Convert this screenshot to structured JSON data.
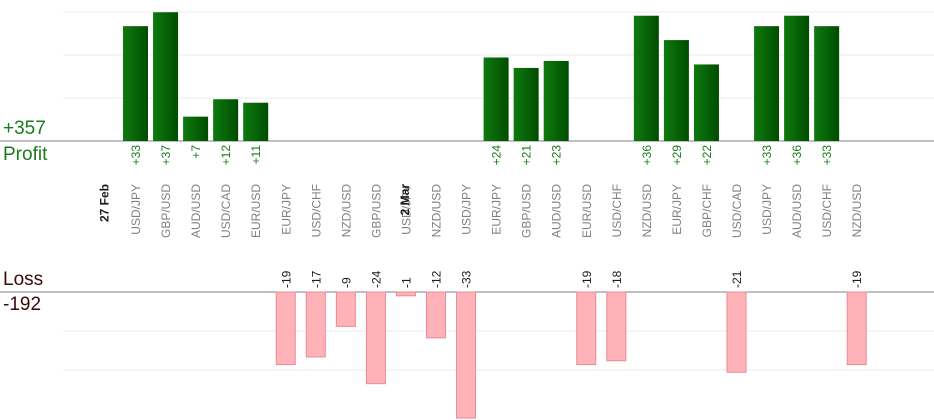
{
  "summary": {
    "profit_total": "+357",
    "profit_label": "Profit",
    "loss_label": "Loss",
    "loss_total": "-192"
  },
  "colors": {
    "profit_top": "#0e7a0e",
    "profit_bottom": "#004d00",
    "loss_fill": "#ffb3b8",
    "loss_stroke": "#e98a93",
    "profit_text": "#1b7a1b",
    "loss_text": "#3a0a0a",
    "pair_text": "#808080",
    "grid": "#ebebeb"
  },
  "chart_data": {
    "type": "bar",
    "date_markers": [
      {
        "label": "27 Feb",
        "before_index": 0
      },
      {
        "label": "2 Mar",
        "before_index": 10
      }
    ],
    "categories": [
      "USD/JPY",
      "GBP/USD",
      "AUD/USD",
      "USD/CAD",
      "EUR/USD",
      "EUR/JPY",
      "USD/CHF",
      "NZD/USD",
      "GBP/USD",
      "USD/JPY",
      "NZD/USD",
      "USD/JPY",
      "EUR/JPY",
      "GBP/USD",
      "AUD/USD",
      "EUR/USD",
      "USD/CHF",
      "NZD/USD",
      "EUR/JPY",
      "GBP/CHF",
      "USD/CAD",
      "USD/JPY",
      "AUD/USD",
      "USD/CHF",
      "NZD/USD"
    ],
    "values": [
      33,
      37,
      7,
      12,
      11,
      -19,
      -17,
      -9,
      -24,
      -1,
      -12,
      -33,
      24,
      21,
      23,
      -19,
      -18,
      36,
      29,
      22,
      -21,
      33,
      36,
      33,
      -19
    ],
    "value_labels": [
      "+33",
      "+37",
      "+7",
      "+12",
      "+11",
      "-19",
      "-17",
      "-9",
      "-24",
      "-1",
      "-12",
      "-33",
      "+24",
      "+21",
      "+23",
      "-19",
      "-18",
      "+36",
      "+29",
      "+22",
      "-21",
      "+33",
      "+36",
      "+33",
      "-19"
    ]
  }
}
